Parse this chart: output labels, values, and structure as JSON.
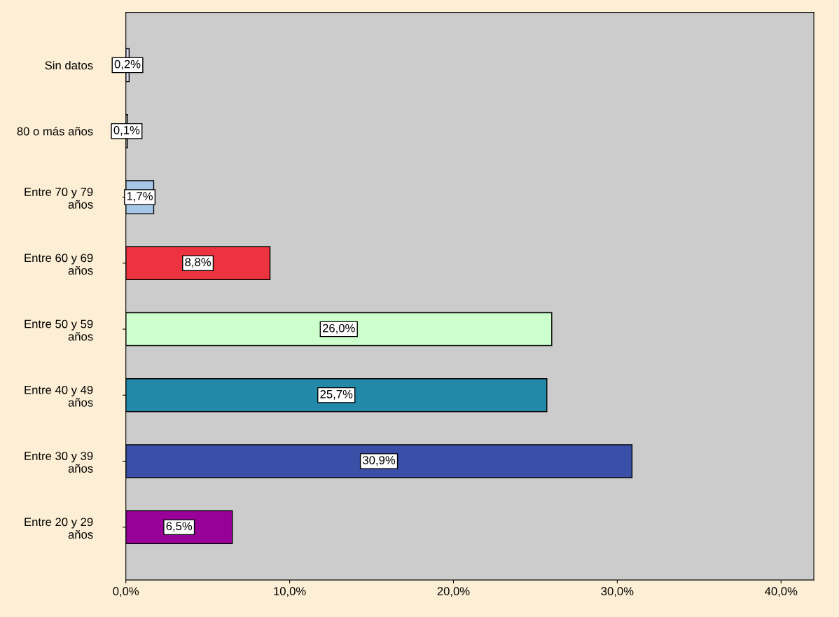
{
  "chart_data": {
    "type": "bar",
    "orientation": "horizontal",
    "categories": [
      "Sin datos",
      "80 o más años",
      "Entre 70 y 79\naños",
      "Entre 60 y 69\naños",
      "Entre 50 y 59\naños",
      "Entre 40 y 49\naños",
      "Entre 30 y 39\naños",
      "Entre 20 y 29\naños"
    ],
    "values": [
      0.2,
      0.1,
      1.7,
      8.8,
      26.0,
      25.7,
      30.9,
      6.5
    ],
    "colors": [
      "#d9d9f2",
      "#f0f0f0",
      "#a8c8e8",
      "#ee3340",
      "#ccffcc",
      "#2389a8",
      "#3a50a8",
      "#990099"
    ],
    "value_labels": [
      "0,2%",
      "0,1%",
      "1,7%",
      "8,8%",
      "26,0%",
      "25,7%",
      "30,9%",
      "6,5%"
    ],
    "xlim": [
      0,
      42
    ],
    "xticks": [
      {
        "value": 0,
        "label": "0,0%"
      },
      {
        "value": 10,
        "label": "10,0%"
      },
      {
        "value": 20,
        "label": "20,0%"
      },
      {
        "value": 30,
        "label": "30,0%"
      },
      {
        "value": 40,
        "label": "40,0%"
      }
    ],
    "grid": false,
    "legend": false
  }
}
